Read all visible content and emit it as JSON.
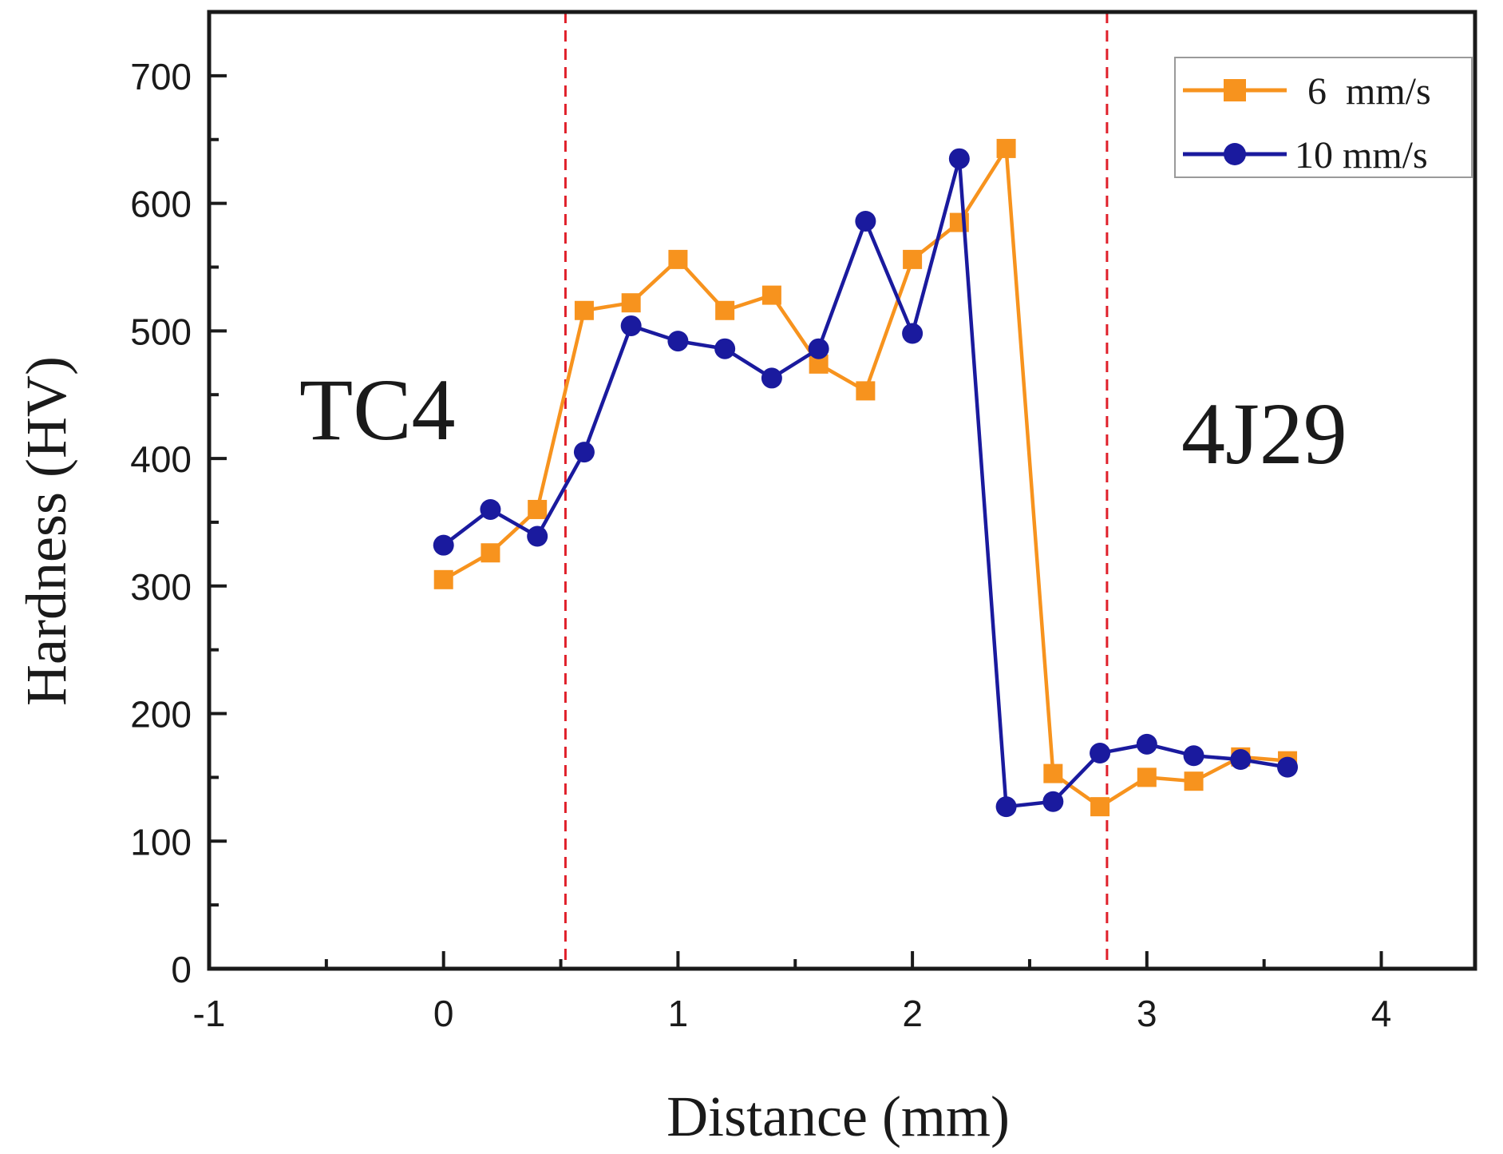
{
  "chart_data": {
    "type": "line",
    "xlabel": "Distance (mm)",
    "ylabel": "Hardness (HV)",
    "xlim": [
      -1,
      4.4
    ],
    "ylim": [
      0,
      750
    ],
    "x_ticks": [
      -1,
      0,
      1,
      2,
      3,
      4
    ],
    "y_ticks": [
      0,
      100,
      200,
      300,
      400,
      500,
      600,
      700
    ],
    "x_tick_labels": [
      "-1",
      "0",
      "1",
      "2",
      "3",
      "4"
    ],
    "y_tick_labels": [
      "0",
      "100",
      "200",
      "300",
      "400",
      "500",
      "600",
      "700"
    ],
    "grid": false,
    "legend_position": "top-right",
    "reference_lines": [
      0.52,
      2.83
    ],
    "region_labels": [
      "TC4",
      "4J29"
    ],
    "colors": {
      "orange": "#f7931e",
      "blue": "#1a1a9e",
      "refline": "#e0202a"
    },
    "series": [
      {
        "name": "6  mm/s",
        "marker": "square",
        "color": "#f7931e",
        "x": [
          0,
          0.2,
          0.4,
          0.6,
          0.8,
          1.0,
          1.2,
          1.4,
          1.6,
          1.8,
          2.0,
          2.2,
          2.4,
          2.6,
          2.8,
          3.0,
          3.2,
          3.4,
          3.6
        ],
        "y": [
          305,
          326,
          360,
          516,
          522,
          556,
          516,
          528,
          474,
          453,
          556,
          585,
          643,
          153,
          127,
          150,
          147,
          166,
          163
        ]
      },
      {
        "name": "10 mm/s",
        "marker": "circle",
        "color": "#1a1a9e",
        "x": [
          0,
          0.2,
          0.4,
          0.6,
          0.8,
          1.0,
          1.2,
          1.4,
          1.6,
          1.8,
          2.0,
          2.2,
          2.4,
          2.6,
          2.8,
          3.0,
          3.2,
          3.4,
          3.6
        ],
        "y": [
          332,
          360,
          339,
          405,
          504,
          492,
          486,
          463,
          486,
          586,
          498,
          635,
          127,
          131,
          169,
          176,
          167,
          164,
          158
        ]
      }
    ]
  }
}
